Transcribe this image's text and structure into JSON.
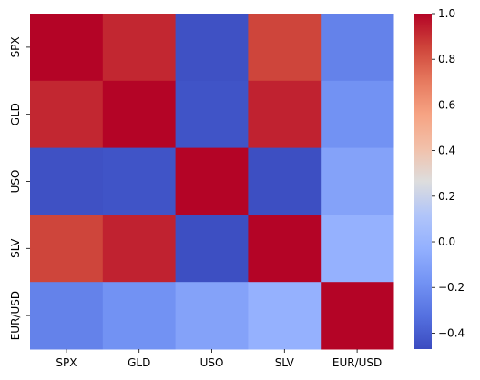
{
  "chart_data": {
    "type": "heatmap",
    "title": "",
    "xlabel": "",
    "ylabel": "",
    "x_categories": [
      "SPX",
      "GLD",
      "USO",
      "SLV",
      "EUR/USD"
    ],
    "y_categories": [
      "SPX",
      "GLD",
      "USO",
      "SLV",
      "EUR/USD"
    ],
    "values": [
      [
        1.0,
        0.92,
        -0.45,
        0.85,
        -0.25
      ],
      [
        0.92,
        1.0,
        -0.44,
        0.93,
        -0.18
      ],
      [
        -0.45,
        -0.44,
        1.0,
        -0.46,
        -0.1
      ],
      [
        0.85,
        0.93,
        -0.46,
        1.0,
        -0.02
      ],
      [
        -0.25,
        -0.18,
        -0.1,
        -0.02,
        1.0
      ]
    ],
    "colormap": "coolwarm",
    "vmin": -0.47,
    "vmax": 1.0,
    "colorbar": {
      "ticks": [
        1.0,
        0.8,
        0.6,
        0.4,
        0.2,
        0.0,
        -0.2,
        -0.4
      ],
      "tick_labels": [
        "1.0",
        "0.8",
        "0.6",
        "0.4",
        "0.2",
        "0.0",
        "−0.2",
        "−0.4"
      ],
      "placement": "right"
    },
    "grid": false,
    "colors": {
      "low": "#3b4cc0",
      "mid": "#dddddd",
      "high": "#b40426"
    }
  }
}
